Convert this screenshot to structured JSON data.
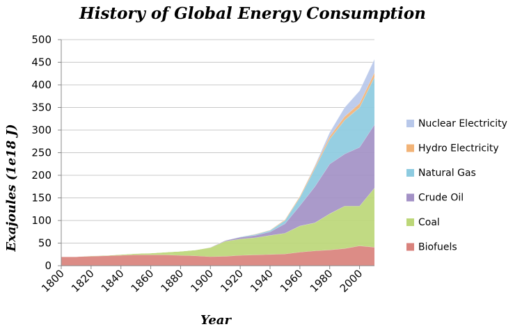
{
  "chart_data": {
    "type": "area",
    "stacked": true,
    "title": "History of Global Energy Consumption",
    "xlabel": "Year",
    "ylabel": "Exajoules (1e18 J)",
    "xlim": [
      1800,
      2010
    ],
    "ylim": [
      0,
      500
    ],
    "x_ticks": [
      1800,
      1820,
      1840,
      1860,
      1880,
      1900,
      1920,
      1940,
      1960,
      1980,
      2000
    ],
    "y_ticks": [
      0,
      50,
      100,
      150,
      200,
      250,
      300,
      350,
      400,
      450,
      500
    ],
    "grid": true,
    "legend_position": "right",
    "x": [
      1800,
      1810,
      1820,
      1830,
      1840,
      1850,
      1860,
      1870,
      1880,
      1890,
      1900,
      1910,
      1920,
      1930,
      1940,
      1950,
      1960,
      1970,
      1980,
      1990,
      2000,
      2010
    ],
    "series": [
      {
        "name": "Biofuels",
        "color": "#d9827c",
        "values": [
          20,
          20,
          21,
          22,
          23,
          24,
          24,
          24,
          23,
          22,
          20,
          21,
          23,
          24,
          25,
          26,
          30,
          33,
          35,
          38,
          44,
          41
        ]
      },
      {
        "name": "Coal",
        "color": "#bcd778",
        "values": [
          0,
          0,
          1,
          1,
          2,
          3,
          4,
          6,
          9,
          13,
          20,
          33,
          36,
          38,
          42,
          46,
          58,
          62,
          80,
          94,
          88,
          131
        ]
      },
      {
        "name": "Crude Oil",
        "color": "#a391c6",
        "values": [
          0,
          0,
          0,
          0,
          0,
          0,
          0,
          0,
          0,
          0,
          1,
          2,
          4,
          5,
          8,
          21,
          45,
          80,
          110,
          115,
          130,
          140
        ]
      },
      {
        "name": "Natural Gas",
        "color": "#8dcbe0",
        "values": [
          0,
          0,
          0,
          0,
          0,
          0,
          0,
          0,
          0,
          0,
          0,
          0,
          1,
          2,
          3,
          7,
          18,
          40,
          55,
          75,
          88,
          105
        ]
      },
      {
        "name": "Hydro Electricity",
        "color": "#f2b377",
        "values": [
          0,
          0,
          0,
          0,
          0,
          0,
          0,
          0,
          0,
          0,
          0,
          0,
          0,
          1,
          1,
          2,
          3,
          4,
          6,
          8,
          9,
          10
        ]
      },
      {
        "name": "Nuclear Electricity",
        "color": "#b8c8ea",
        "values": [
          0,
          0,
          0,
          0,
          0,
          0,
          0,
          0,
          0,
          0,
          0,
          0,
          0,
          0,
          0,
          0,
          0,
          2,
          9,
          20,
          28,
          30
        ]
      }
    ],
    "legend": [
      "Nuclear Electricity",
      "Hydro Electricity",
      "Natural Gas",
      "Crude Oil",
      "Coal",
      "Biofuels"
    ]
  }
}
